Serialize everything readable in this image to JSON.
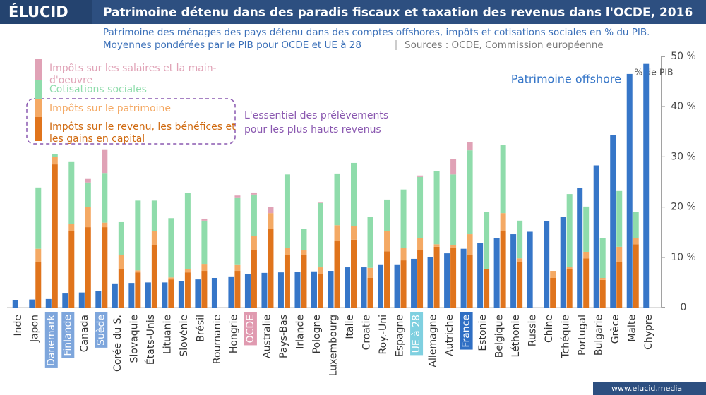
{
  "logo": "ÉLUCID",
  "footer": "www.elucid.media",
  "chart_data": {
    "type": "bar",
    "title": "Patrimoine détenu dans des paradis fiscaux et taxation des revenus dans l'OCDE, 2016",
    "subtitle": "Patrimoine des ménages des pays détenu dans des comptes offshores, impôts et cotisations sociales en % du PIB.",
    "subtitle2": "Moyennes pondérées par le PIB pour OCDE et UE à 28",
    "source": "Sources : OCDE, Commission européenne",
    "annotation": [
      "L'essentiel des prélèvements",
      "pour les plus hauts revenus"
    ],
    "y_unit": "% de PIB",
    "categories": [
      "Inde",
      "Japon",
      "Danemark",
      "Finlande",
      "Canada",
      "Suède",
      "Corée du S.",
      "Slovaquie",
      "États-Unis",
      "Lituanie",
      "Slovénie",
      "Brésil",
      "Roumanie",
      "Hongrie",
      "OCDE",
      "Australie",
      "Pays-Bas",
      "Irlande",
      "Pologne",
      "Luxembourg",
      "Italie",
      "Croatie",
      "Roy.-Uni",
      "Espagne",
      "UE à 28",
      "Allemagne",
      "Autriche",
      "France",
      "Estonie",
      "Belgique",
      "Léthonie",
      "Russie",
      "Chine",
      "Tchéquie",
      "Portugal",
      "Bulgarie",
      "Grèce",
      "Malte",
      "Chypre"
    ],
    "category_highlight": [
      null,
      null,
      "#7ea6dc",
      "#7ea6dc",
      null,
      "#7ea6dc",
      null,
      null,
      null,
      null,
      null,
      null,
      null,
      null,
      "#e09ab0",
      null,
      null,
      null,
      null,
      null,
      null,
      null,
      null,
      null,
      "#7fd0e0",
      null,
      null,
      "#2f6fc4",
      null,
      null,
      null,
      null,
      null,
      null,
      null,
      null,
      null,
      null,
      null
    ],
    "series": [
      {
        "name": "Patrimoine offshore",
        "color": "#3676c8",
        "values": [
          1.5,
          1.6,
          1.7,
          2.8,
          3.0,
          3.3,
          4.8,
          4.9,
          5.0,
          5.0,
          5.3,
          5.6,
          5.9,
          6.2,
          6.7,
          6.9,
          7.0,
          7.1,
          7.2,
          7.3,
          8.0,
          8.0,
          8.6,
          8.6,
          9.7,
          10.0,
          10.8,
          11.7,
          12.8,
          13.9,
          14.6,
          15.1,
          17.2,
          18.1,
          23.8,
          28.3,
          34.3,
          46.5,
          48.5
        ]
      },
      {
        "name": "Impôts sur les salaires et la main-d'oeuvre",
        "color": "#e0a2b6",
        "values": [
          null,
          0,
          0,
          0,
          0.7,
          4.7,
          0,
          0,
          0,
          0,
          0,
          0.4,
          null,
          0.5,
          0.4,
          1.2,
          0,
          0,
          0.1,
          0,
          0,
          0,
          0,
          0,
          0.3,
          0,
          3.1,
          1.6,
          0,
          0,
          0,
          null,
          0,
          0,
          0,
          0,
          0,
          0,
          null
        ]
      },
      {
        "name": "Cotisations sociales",
        "color": "#8fdcab",
        "values": [
          null,
          12.2,
          0.6,
          12.5,
          4.9,
          9.9,
          6.5,
          13.9,
          6.0,
          11.8,
          15.2,
          8.6,
          null,
          13.2,
          8.3,
          0,
          14.6,
          4.2,
          12.8,
          10.3,
          12.6,
          10.2,
          6.2,
          11.6,
          12.1,
          14.6,
          14.1,
          16.7,
          11.4,
          13.5,
          7.5,
          null,
          0,
          14.5,
          9.0,
          8.0,
          11.1,
          5.2,
          null
        ]
      },
      {
        "name": "Impôts sur le patrimoine",
        "color": "#f4a964",
        "values": [
          null,
          2.6,
          1.5,
          1.4,
          4.0,
          0.9,
          2.8,
          0.4,
          2.9,
          0.4,
          0.6,
          1.4,
          null,
          1.3,
          2.7,
          3.1,
          1.5,
          1.1,
          1.3,
          3.2,
          2.7,
          2.0,
          4.1,
          2.5,
          2.4,
          0.5,
          0.6,
          4.2,
          0,
          3.5,
          0.8,
          null,
          1.4,
          0.5,
          1.3,
          0.4,
          3.1,
          1.2,
          null
        ]
      },
      {
        "name": "Impôts sur le revenu, les bénéfices et les gains en capital",
        "color": "#e0741c",
        "values": [
          null,
          9.1,
          28.5,
          15.2,
          16.0,
          16.0,
          7.7,
          7.0,
          12.4,
          5.6,
          7.0,
          7.3,
          null,
          7.3,
          11.5,
          15.7,
          10.4,
          10.4,
          6.7,
          13.2,
          13.5,
          5.9,
          11.2,
          9.4,
          11.5,
          12.1,
          11.8,
          10.4,
          7.6,
          15.3,
          9.0,
          null,
          5.9,
          7.6,
          9.8,
          5.5,
          9.0,
          12.6,
          null
        ]
      }
    ],
    "ylim": [
      0,
      50
    ],
    "yticks": [
      {
        "value": 0,
        "label": "0"
      },
      {
        "value": 10,
        "label": "10 %"
      },
      {
        "value": 20,
        "label": "20 %"
      },
      {
        "value": 30,
        "label": "30 %"
      },
      {
        "value": 40,
        "label": "40 %"
      },
      {
        "value": 50,
        "label": "50 %"
      }
    ]
  }
}
